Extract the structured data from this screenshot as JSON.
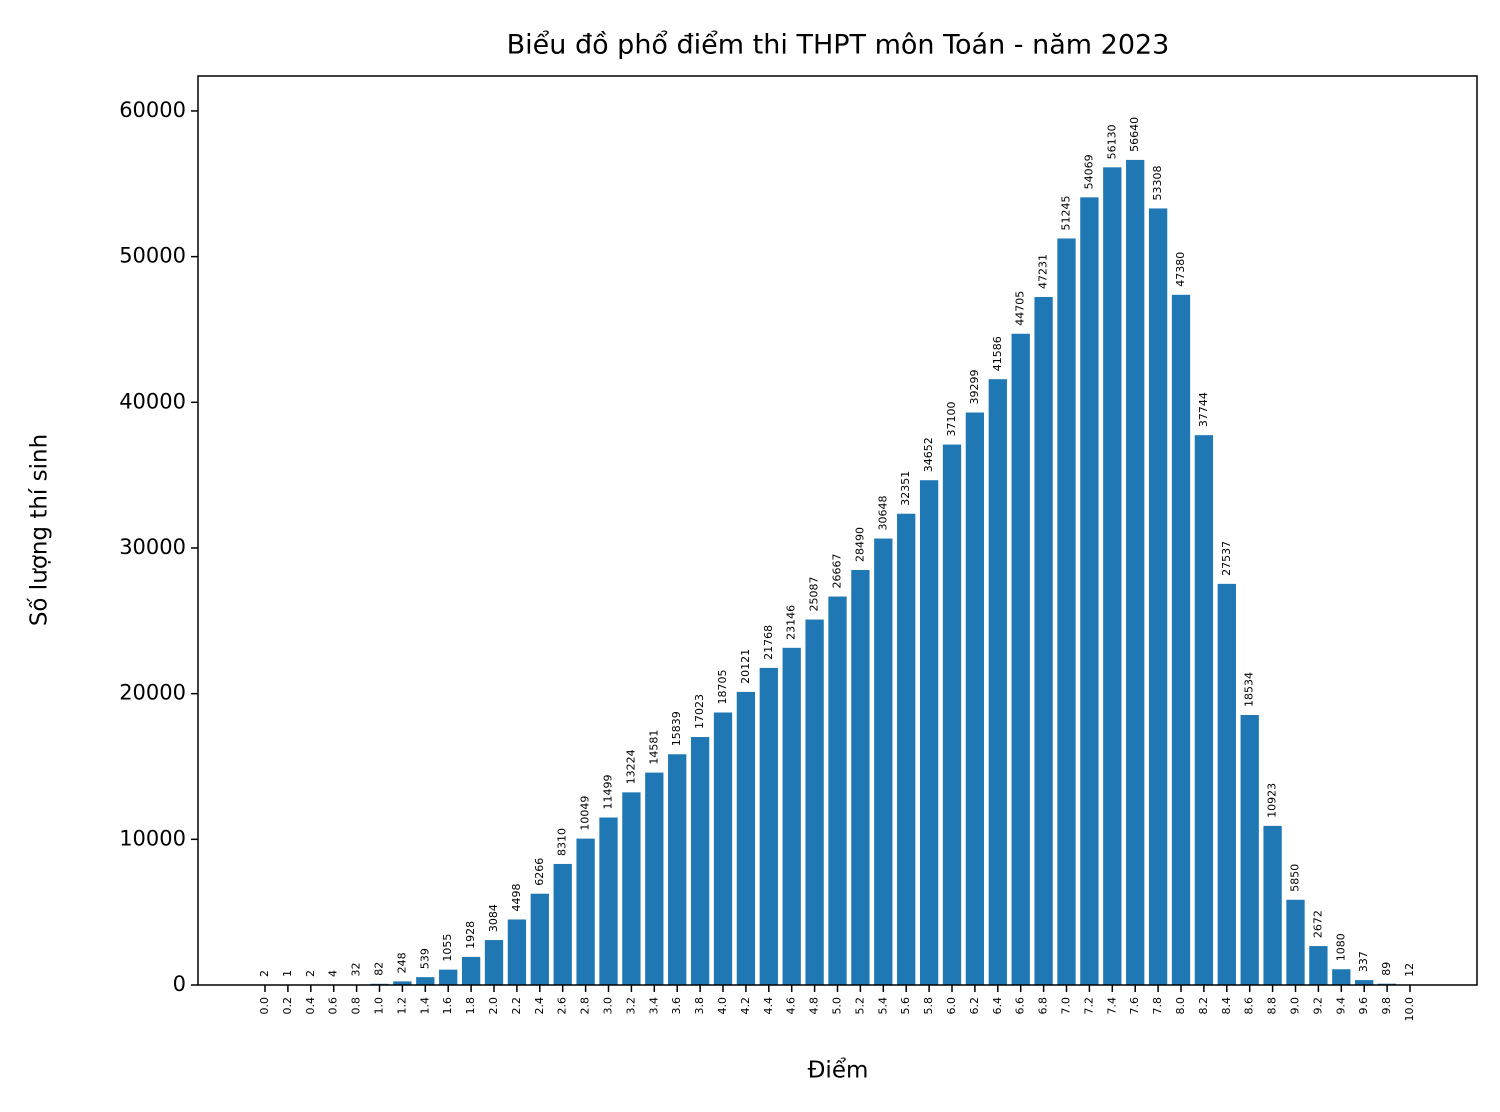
{
  "chart_data": {
    "type": "bar",
    "title": "Biểu đồ phổ điểm thi THPT môn Toán - năm 2023",
    "x_label": "Điểm",
    "y_label": "Số lượng thí sinh",
    "categories": [
      "0.0",
      "0.2",
      "0.4",
      "0.6",
      "0.8",
      "1.0",
      "1.2",
      "1.4",
      "1.6",
      "1.8",
      "2.0",
      "2.2",
      "2.4",
      "2.6",
      "2.8",
      "3.0",
      "3.2",
      "3.4",
      "3.6",
      "3.8",
      "4.0",
      "4.2",
      "4.4",
      "4.6",
      "4.8",
      "5.0",
      "5.2",
      "5.4",
      "5.6",
      "5.8",
      "6.0",
      "6.2",
      "6.4",
      "6.6",
      "6.8",
      "7.0",
      "7.2",
      "7.4",
      "7.6",
      "7.8",
      "8.0",
      "8.2",
      "8.4",
      "8.6",
      "8.8",
      "9.0",
      "9.2",
      "9.4",
      "9.6",
      "9.8",
      "10.0"
    ],
    "values": [
      2,
      1,
      2,
      4,
      32,
      82,
      248,
      539,
      1055,
      1928,
      3084,
      4498,
      6266,
      8310,
      10049,
      11499,
      13224,
      14581,
      15839,
      17023,
      18705,
      20121,
      21768,
      23146,
      25087,
      26667,
      28490,
      30648,
      32351,
      34652,
      37100,
      39299,
      41586,
      44705,
      47231,
      51245,
      54069,
      56130,
      56640,
      53308,
      47380,
      37744,
      27537,
      18534,
      10923,
      5850,
      2672,
      1080,
      337,
      89,
      12
    ],
    "color": "#1f77b4",
    "ylim": [
      0,
      62400
    ],
    "yticks": [
      0,
      10000,
      20000,
      30000,
      40000,
      50000,
      60000
    ],
    "grid": false
  }
}
